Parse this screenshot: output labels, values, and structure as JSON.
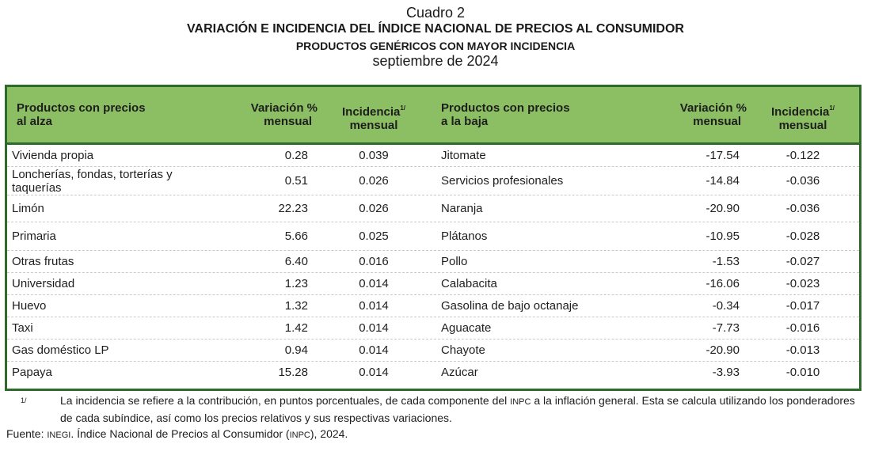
{
  "title": {
    "cuadro": "Cuadro 2",
    "main": "VARIACIÓN E INCIDENCIA DEL ÍNDICE NACIONAL DE PRECIOS AL CONSUMIDOR",
    "subtitle": "PRODUCTOS GENÉRICOS CON MAYOR INCIDENCIA",
    "period": "septiembre de 2024"
  },
  "table": {
    "headers": {
      "up_product_l1": "Productos con precios",
      "up_product_l2": "al alza",
      "up_var_l1": "Variación %",
      "up_var_l2": "mensual",
      "up_inc_l1": "Incidencia",
      "up_inc_sup": "1/",
      "up_inc_l2": "mensual",
      "down_product_l1": "Productos con precios",
      "down_product_l2": "a la baja",
      "down_var_l1": "Variación %",
      "down_var_l2": "mensual",
      "down_inc_l1": "Incidencia",
      "down_inc_sup": "1/",
      "down_inc_l2": "mensual"
    },
    "rows": [
      {
        "up_product": "Vivienda propia",
        "up_var": "0.28",
        "up_inc": "0.039",
        "down_product": "Jitomate",
        "down_var": "-17.54",
        "down_inc": "-0.122"
      },
      {
        "up_product": "Loncherías, fondas, torterías y taquerías",
        "up_var": "0.51",
        "up_inc": "0.026",
        "down_product": "Servicios profesionales",
        "down_var": "-14.84",
        "down_inc": "-0.036"
      },
      {
        "up_product": "Limón",
        "up_var": "22.23",
        "up_inc": "0.026",
        "down_product": "Naranja",
        "down_var": "-20.90",
        "down_inc": "-0.036"
      },
      {
        "up_product": "Primaria",
        "up_var": "5.66",
        "up_inc": "0.025",
        "down_product": "Plátanos",
        "down_var": "-10.95",
        "down_inc": "-0.028"
      },
      {
        "up_product": "Otras frutas",
        "up_var": "6.40",
        "up_inc": "0.016",
        "down_product": "Pollo",
        "down_var": "-1.53",
        "down_inc": "-0.027"
      },
      {
        "up_product": "Universidad",
        "up_var": "1.23",
        "up_inc": "0.014",
        "down_product": "Calabacita",
        "down_var": "-16.06",
        "down_inc": "-0.023"
      },
      {
        "up_product": "Huevo",
        "up_var": "1.32",
        "up_inc": "0.014",
        "down_product": "Gasolina de bajo octanaje",
        "down_var": "-0.34",
        "down_inc": "-0.017"
      },
      {
        "up_product": "Taxi",
        "up_var": "1.42",
        "up_inc": "0.014",
        "down_product": "Aguacate",
        "down_var": "-7.73",
        "down_inc": "-0.016"
      },
      {
        "up_product": "Gas doméstico LP",
        "up_var": "0.94",
        "up_inc": "0.014",
        "down_product": "Chayote",
        "down_var": "-20.90",
        "down_inc": "-0.013"
      },
      {
        "up_product": "Papaya",
        "up_var": "15.28",
        "up_inc": "0.014",
        "down_product": "Azúcar",
        "down_var": "-3.93",
        "down_inc": "-0.010"
      }
    ]
  },
  "footnote": {
    "mark": "1/",
    "text_a": "La incidencia se refiere a la contribución, en puntos porcentuales, de cada componente del ",
    "text_inpc": "INPC",
    "text_b": " a la inflación general. Esta se calcula utilizando los ponderadores de cada subíndice, así como los precios relativos y sus respectivas variaciones."
  },
  "source": {
    "label": "Fuente:",
    "org": "INEGI",
    "text_a": ". Índice Nacional de Precios al Consumidor (",
    "abbr": "INPC",
    "text_b": "), 2024."
  },
  "colors": {
    "header_bg": "#8cbf63",
    "border": "#2e6b2a",
    "row_divider": "#c9c9c9"
  }
}
